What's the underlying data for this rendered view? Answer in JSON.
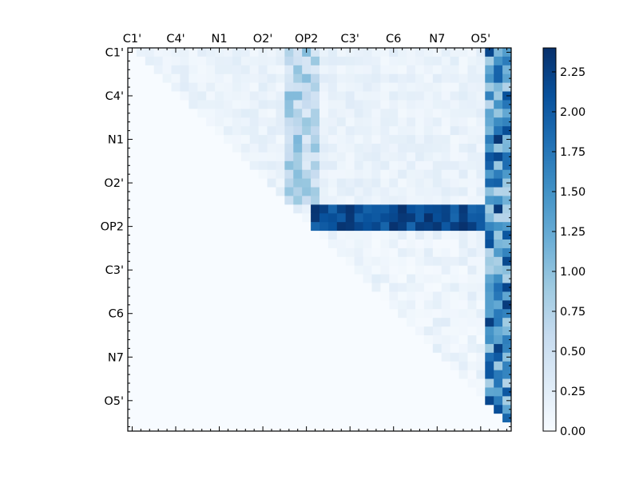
{
  "chart_data": {
    "type": "heatmap",
    "title": "",
    "xlabel": "",
    "ylabel": "",
    "size": 44,
    "tick_labels": [
      "C1'",
      "C4'",
      "N1",
      "O2'",
      "OP2",
      "C3'",
      "C6",
      "N7",
      "O5'"
    ],
    "tick_indices": [
      0,
      5,
      10,
      15,
      20,
      25,
      30,
      35,
      40
    ],
    "colorbar": {
      "min": 0.0,
      "max": 2.4,
      "ticks": [
        "0.00",
        "0.25",
        "0.50",
        "0.75",
        "1.00",
        "1.25",
        "1.50",
        "1.75",
        "2.00",
        "2.25"
      ],
      "tick_values": [
        0,
        0.25,
        0.5,
        0.75,
        1.0,
        1.25,
        1.5,
        1.75,
        2.0,
        2.25
      ],
      "colormap": "Blues"
    },
    "structure": {
      "triangle": "upper",
      "hot_row_block": [
        18,
        20
      ],
      "hot_row_value_range": [
        1.9,
        2.4
      ],
      "hot_col_block": [
        41,
        43
      ],
      "hot_col_value_range": [
        0.7,
        2.4
      ],
      "op2_col_block": [
        18,
        21
      ],
      "op2_col_value_range": [
        0.3,
        1.1
      ],
      "background_upper_value": 0.2,
      "background_lower_value": 0.0
    }
  }
}
